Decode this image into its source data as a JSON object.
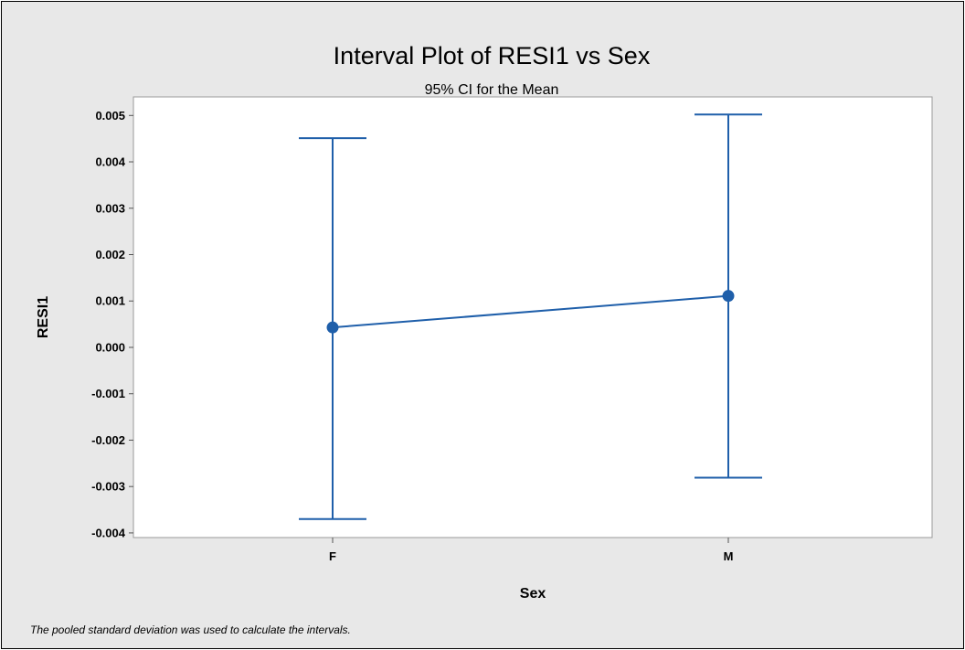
{
  "chart_data": {
    "type": "interval",
    "title": "Interval Plot of RESI1 vs Sex",
    "subtitle": "95% CI for the Mean",
    "xlabel": "Sex",
    "ylabel": "RESI1",
    "categories": [
      "F",
      "M"
    ],
    "means": [
      0.00043,
      0.00111
    ],
    "lower": [
      -0.0037,
      -0.00281
    ],
    "upper": [
      0.00451,
      0.00502
    ],
    "ylim": [
      -0.0041,
      0.0054
    ],
    "yticks": [
      -0.004,
      -0.003,
      -0.002,
      -0.001,
      0.0,
      0.001,
      0.002,
      0.003,
      0.004,
      0.005
    ],
    "ytick_labels": [
      "-0.004",
      "-0.003",
      "-0.002",
      "-0.001",
      "0.000",
      "0.001",
      "0.002",
      "0.003",
      "0.004",
      "0.005"
    ],
    "grid": false,
    "series_color": "#1f5faa",
    "footnote": "The pooled standard deviation was used to calculate the intervals."
  }
}
